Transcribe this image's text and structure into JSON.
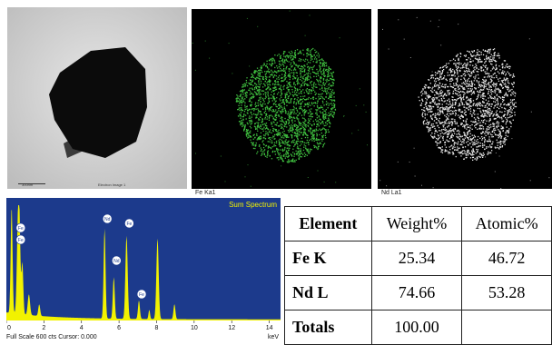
{
  "tem_image": {
    "scale_bar_label": "300nm",
    "caption": "Electron Image 1"
  },
  "maps": [
    {
      "label": "Fe Ka1",
      "dot_color": "#3fbf3f"
    },
    {
      "label": "Nd La1",
      "dot_color": "#e8e8e8"
    }
  ],
  "spectrum": {
    "title": "Sum Spectrum",
    "footer": "Full Scale 600 cts Cursor: 0.000",
    "unit": "keV",
    "x_ticks": [
      "0",
      "2",
      "4",
      "6",
      "8",
      "10",
      "12",
      "14"
    ],
    "peak_labels": [
      "Fe",
      "Fe",
      "Nd",
      "Nd",
      "Fe",
      "Fe"
    ],
    "background_color": "#1c3a8c",
    "fill_color": "#f2f200"
  },
  "table": {
    "headers": [
      "Element",
      "Weight%",
      "Atomic%"
    ],
    "rows": [
      [
        "Fe K",
        "25.34",
        "46.72"
      ],
      [
        "Nd L",
        "74.66",
        "53.28"
      ],
      [
        "Totals",
        "100.00",
        ""
      ]
    ]
  }
}
